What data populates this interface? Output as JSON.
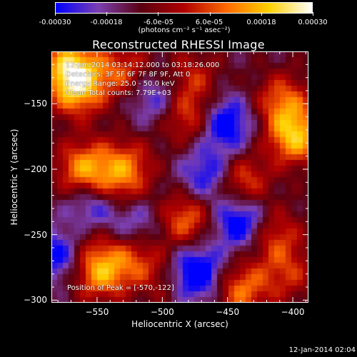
{
  "colorbar": {
    "tick_labels": [
      "-0.00030",
      "-0.00018",
      "-6.0e-05",
      "6.0e-05",
      "0.00018",
      "0.00030"
    ],
    "unit_label": "(photons cm⁻² s⁻¹ asec⁻²)",
    "colors": [
      "#0000ff",
      "#7b3fb0",
      "#5a0010",
      "#b00000",
      "#ff6a00",
      "#ffd000",
      "#ffffff"
    ]
  },
  "chart_data": {
    "type": "heatmap",
    "title": "Reconstructed RHESSI Image",
    "xlabel": "Heliocentric X (arcsec)",
    "ylabel": "Heliocentric Y (arcsec)",
    "xlim": [
      -585,
      -388
    ],
    "ylim": [
      -302,
      -110
    ],
    "x_ticks": [
      -550,
      -500,
      -450,
      -400
    ],
    "y_ticks": [
      -150,
      -200,
      -250,
      -300
    ],
    "vmin": -0.0003,
    "vmax": 0.0003,
    "peak": {
      "x": -570,
      "y": -122
    },
    "bright_sources": [
      {
        "x": -570,
        "y": -122,
        "value": 0.0003
      },
      {
        "x": -565,
        "y": -140,
        "value": 0.00024
      },
      {
        "x": -530,
        "y": -125,
        "value": 0.00018
      },
      {
        "x": -480,
        "y": -160,
        "value": 0.0002
      },
      {
        "x": -478,
        "y": -130,
        "value": 0.00014
      },
      {
        "x": -560,
        "y": -200,
        "value": 0.00026
      },
      {
        "x": -528,
        "y": -198,
        "value": 0.0002
      },
      {
        "x": -535,
        "y": -220,
        "value": 0.00014
      },
      {
        "x": -555,
        "y": -245,
        "value": 0.00016
      },
      {
        "x": -548,
        "y": -278,
        "value": 0.00028
      },
      {
        "x": -520,
        "y": -268,
        "value": 0.00016
      },
      {
        "x": -482,
        "y": -238,
        "value": 0.00022
      },
      {
        "x": -440,
        "y": -210,
        "value": 0.00022
      },
      {
        "x": -415,
        "y": -250,
        "value": 0.00018
      },
      {
        "x": -398,
        "y": -175,
        "value": 0.0003
      },
      {
        "x": -408,
        "y": -148,
        "value": 0.0002
      },
      {
        "x": -404,
        "y": -280,
        "value": 0.00014
      },
      {
        "x": -440,
        "y": -292,
        "value": 0.00022
      },
      {
        "x": -495,
        "y": -285,
        "value": 0.0001
      }
    ],
    "dark_sources": [
      {
        "x": -475,
        "y": -280,
        "value": -0.0003
      },
      {
        "x": -452,
        "y": -165,
        "value": -0.00024
      },
      {
        "x": -440,
        "y": -240,
        "value": -0.00026
      },
      {
        "x": -552,
        "y": -232,
        "value": -0.00028
      },
      {
        "x": -505,
        "y": -145,
        "value": -0.00016
      },
      {
        "x": -520,
        "y": -240,
        "value": -0.00014
      },
      {
        "x": -580,
        "y": -265,
        "value": -0.0002
      },
      {
        "x": -465,
        "y": -205,
        "value": -0.0002
      }
    ]
  },
  "info": {
    "time_range": "12-Jan-2014 03:14:12.000 to 03:18:26.000",
    "detectors": "Detectors: 3F 5F 6F 7F 8F 9F, Att 0",
    "energy_range": "Energy Range: 25.0 - 50.0 keV",
    "clean": "Clean    Total counts: 7.79E+03",
    "peak_position": "Position of Peak = [-570,-122]"
  },
  "date_stamp": "12-Jan-2014 02:04"
}
